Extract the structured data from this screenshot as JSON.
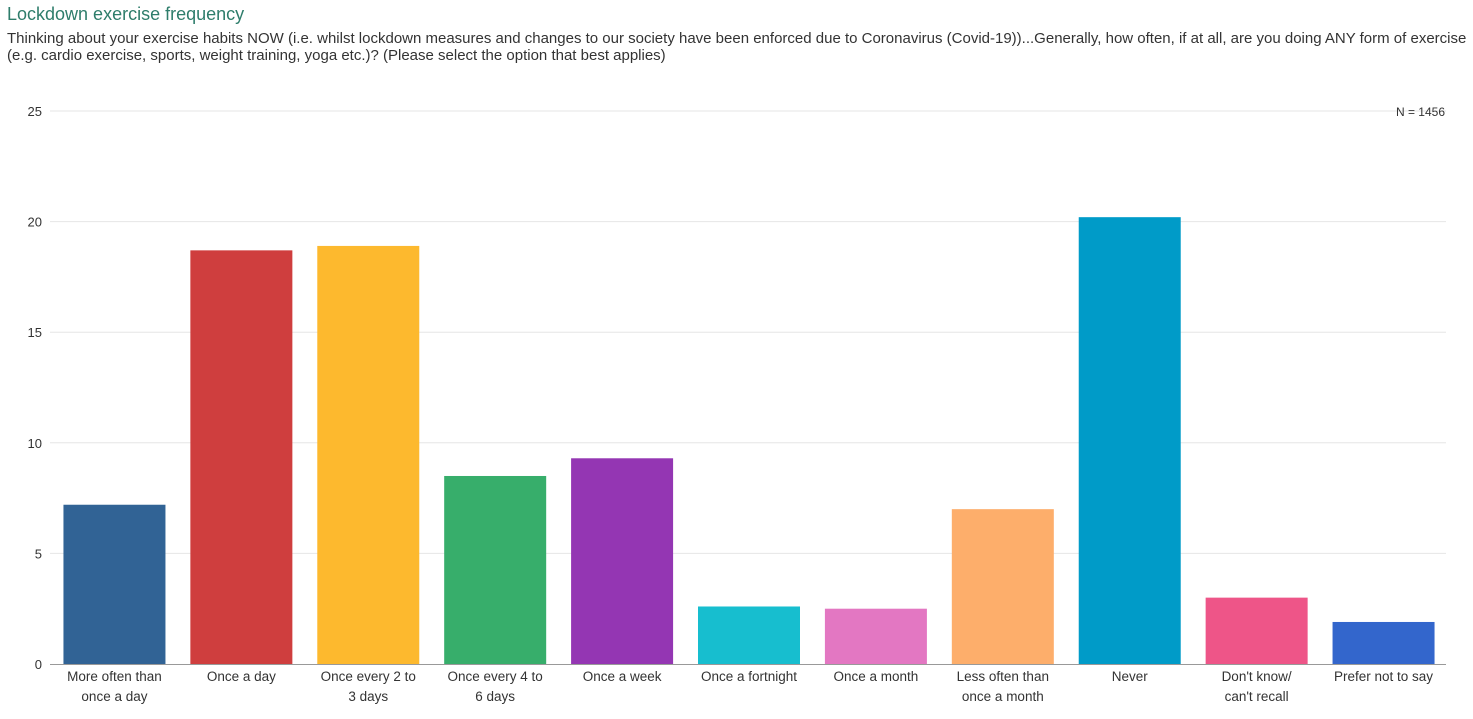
{
  "header": {
    "title": "Lockdown exercise frequency",
    "subtitle": "Thinking about your exercise habits NOW (i.e. whilst lockdown measures and changes to our society have been enforced due to Coronavirus (Covid-19))...Generally, how often, if at all, are you doing ANY form of exercise (e.g. cardio exercise, sports, weight training, yoga etc.)? (Please select the option that best applies)"
  },
  "chart_data": {
    "type": "bar",
    "title": "Lockdown exercise frequency",
    "sample_size_label": "N = 1456",
    "categories": [
      "More often than once a day",
      "Once a day",
      "Once every 2 to 3 days",
      "Once every 4 to 6 days",
      "Once a week",
      "Once a fortnight",
      "Once a month",
      "Less often than once a month",
      "Never",
      "Don't know/ can't recall",
      "Prefer not to say"
    ],
    "category_label_lines": [
      [
        "More often than",
        "once a day"
      ],
      [
        "Once a day"
      ],
      [
        "Once every 2 to",
        "3 days"
      ],
      [
        "Once every 4 to",
        "6 days"
      ],
      [
        "Once a week"
      ],
      [
        "Once a fortnight"
      ],
      [
        "Once a month"
      ],
      [
        "Less often than",
        "once a month"
      ],
      [
        "Never"
      ],
      [
        "Don't know/",
        "can't recall"
      ],
      [
        "Prefer not to say"
      ]
    ],
    "values": [
      7.2,
      18.7,
      18.9,
      8.5,
      9.3,
      2.6,
      2.5,
      7.0,
      20.2,
      3.0,
      1.9
    ],
    "colors": [
      "#316395",
      "#cf3e3e",
      "#fdb92e",
      "#37ae6b",
      "#9436b3",
      "#17becf",
      "#e377c2",
      "#fdae6b",
      "#009bc8",
      "#ee5588",
      "#3366cc"
    ],
    "ylim": [
      0,
      25
    ],
    "yticks": [
      0,
      5,
      10,
      15,
      20,
      25
    ],
    "grid": true,
    "xlabel": "",
    "ylabel": ""
  }
}
